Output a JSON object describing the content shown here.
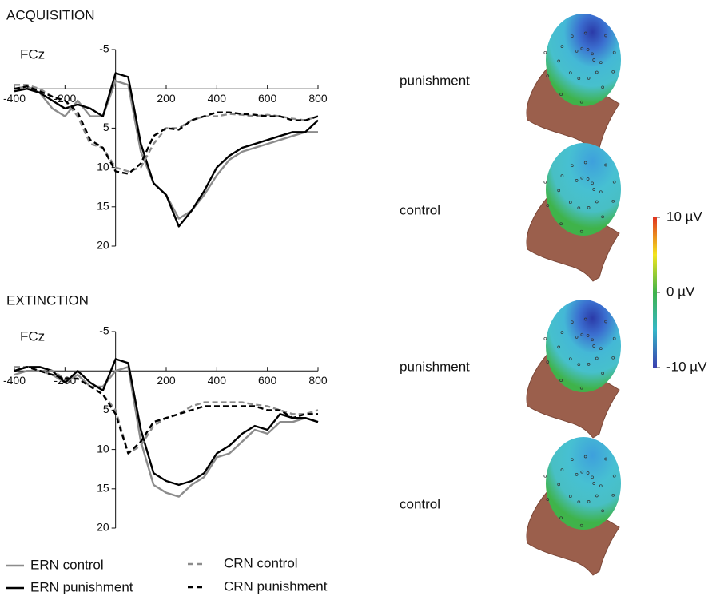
{
  "chart_data": [
    {
      "type": "line",
      "title": "ACQUISITION",
      "annotation": "FCz",
      "x": [
        -400,
        -350,
        -300,
        -250,
        -200,
        -150,
        -100,
        -50,
        0,
        50,
        100,
        150,
        200,
        250,
        300,
        350,
        400,
        450,
        500,
        550,
        600,
        650,
        700,
        750,
        800
      ],
      "xlim": [
        -400,
        800
      ],
      "xticks": [
        -400,
        -200,
        200,
        400,
        600,
        800
      ],
      "ylim": [
        -5,
        20
      ],
      "yticks": [
        -5,
        5,
        10,
        15,
        20
      ],
      "y_inverted": true,
      "series": [
        {
          "name": "ERN control",
          "color": "#8c8c8c",
          "style": "solid",
          "values": [
            0,
            -0.3,
            0.5,
            2.5,
            3.5,
            1.5,
            3.5,
            3.5,
            -1,
            -0.5,
            8,
            12,
            13.5,
            16.5,
            15.5,
            13.5,
            11,
            9,
            8,
            7.5,
            7,
            6.5,
            6,
            5.5,
            5.5
          ]
        },
        {
          "name": "ERN punishment",
          "color": "#000000",
          "style": "solid",
          "values": [
            0.3,
            0,
            0.5,
            1.5,
            2.5,
            2,
            2.5,
            3.5,
            -2,
            -1.5,
            7,
            12,
            13.5,
            17.5,
            15.5,
            13,
            10,
            8.5,
            7.5,
            7,
            6.5,
            6,
            5.5,
            5.5,
            4
          ]
        },
        {
          "name": "CRN control",
          "color": "#8c8c8c",
          "style": "dashed",
          "values": [
            -0.5,
            -0.5,
            0,
            1,
            1.5,
            3.5,
            7,
            7.5,
            10,
            10.5,
            10,
            7,
            5,
            5,
            4,
            3.5,
            3.5,
            3.2,
            3.3,
            3.5,
            3.3,
            3.5,
            3.8,
            4,
            3.5
          ]
        },
        {
          "name": "CRN punishment",
          "color": "#000000",
          "style": "dashed",
          "values": [
            0,
            -0.3,
            0.3,
            1,
            1.5,
            3,
            6.5,
            7.5,
            10.5,
            10.8,
            9.5,
            6,
            5,
            5.2,
            4,
            3.5,
            3,
            3,
            3.2,
            3.3,
            3.5,
            3.5,
            4,
            4,
            3.5
          ]
        }
      ]
    },
    {
      "type": "line",
      "title": "EXTINCTION",
      "annotation": "FCz",
      "x": [
        -400,
        -350,
        -300,
        -250,
        -200,
        -150,
        -100,
        -50,
        0,
        50,
        100,
        150,
        200,
        250,
        300,
        350,
        400,
        450,
        500,
        550,
        600,
        650,
        700,
        750,
        800
      ],
      "xlim": [
        -400,
        800
      ],
      "xticks": [
        -400,
        -200,
        200,
        400,
        600,
        800
      ],
      "ylim": [
        -5,
        20
      ],
      "yticks": [
        -5,
        5,
        10,
        15,
        20
      ],
      "y_inverted": true,
      "series": [
        {
          "color": "#8c8c8c",
          "style": "solid",
          "values": [
            0.5,
            0,
            0,
            0.5,
            1.5,
            0.5,
            2,
            2,
            0,
            -0.5,
            9,
            14.5,
            15.5,
            16,
            14.5,
            13.5,
            11,
            10.5,
            9,
            7.5,
            8,
            6.5,
            6.5,
            6,
            6.5
          ]
        },
        {
          "color": "#000000",
          "style": "solid",
          "values": [
            0,
            -0.5,
            -0.5,
            0,
            1.5,
            0,
            1.5,
            2.5,
            -1.5,
            -1,
            7.5,
            13,
            14,
            14.5,
            14,
            13,
            10.5,
            9.5,
            8,
            7,
            7.5,
            5.5,
            6,
            6,
            6.5
          ]
        },
        {
          "color": "#8c8c8c",
          "style": "dashed",
          "values": [
            -0.5,
            -0.5,
            0,
            0,
            1,
            1,
            2,
            3,
            5,
            10.5,
            9.5,
            7,
            6,
            5.5,
            4.5,
            4,
            4,
            4,
            4,
            4.3,
            4.5,
            5,
            5.5,
            5.5,
            5
          ]
        },
        {
          "color": "#000000",
          "style": "dashed",
          "values": [
            0,
            -0.5,
            0,
            0.5,
            1,
            1,
            2,
            3,
            5.5,
            10.5,
            9,
            6.5,
            6,
            5.5,
            5,
            4.5,
            4.5,
            4.5,
            4.5,
            4.5,
            5,
            5,
            6,
            5.5,
            5.5
          ]
        }
      ]
    }
  ],
  "topomaps": {
    "labels": [
      "punishment",
      "control",
      "punishment",
      "control"
    ]
  },
  "colorbar": {
    "lim": [
      -10,
      10
    ],
    "colors": [
      "#3a3fae",
      "#35b6c8",
      "#3fb34a",
      "#f3e51e",
      "#e0341f"
    ],
    "ticks": [
      {
        "value": 10,
        "label": "10 µV"
      },
      {
        "value": 0,
        "label": "0 µV"
      },
      {
        "value": -10,
        "label": "-10 µV"
      }
    ]
  }
}
